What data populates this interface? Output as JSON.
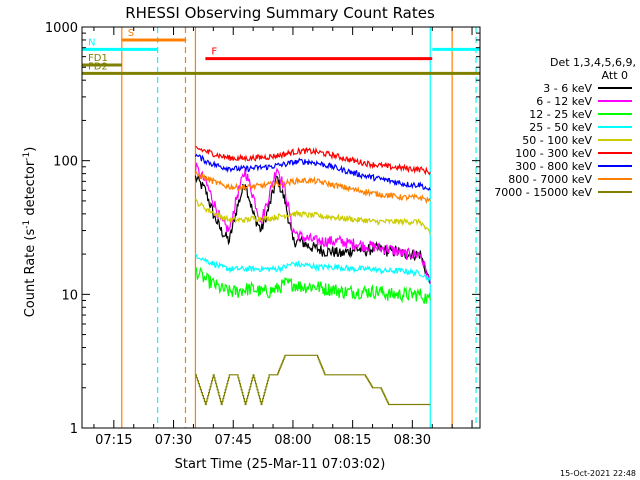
{
  "chart_data": {
    "type": "line",
    "title": "RHESSI Observing Summary Count Rates",
    "xlabel": "Start Time (25-Mar-11 07:03:02)",
    "ylabel_main": "Count Rate (s",
    "ylabel_sup": "-1",
    "ylabel_tail": " detector",
    "ylabel_end": ")",
    "yscale": "log",
    "ylim": [
      1,
      1000
    ],
    "xlim_minutes": [
      7.0,
      107.0
    ],
    "x_tick_labels": [
      {
        "label": "07:15",
        "t": 15
      },
      {
        "label": "07:30",
        "t": 30
      },
      {
        "label": "07:45",
        "t": 45
      },
      {
        "label": "08:00",
        "t": 60
      },
      {
        "label": "08:15",
        "t": 75
      },
      {
        "label": "08:30",
        "t": 90
      }
    ],
    "y_tick_labels": [
      {
        "label": "1",
        "v": 1
      },
      {
        "label": "10",
        "v": 10
      },
      {
        "label": "100",
        "v": 100
      },
      {
        "label": "1000",
        "v": 1000
      }
    ],
    "legend_title_1": "Det 1,3,4,5,6,9,",
    "legend_title_2": "Att 0",
    "legend": [
      {
        "label": "3 - 6 keV",
        "color": "#000000"
      },
      {
        "label": "6 - 12 keV",
        "color": "#ff00ff"
      },
      {
        "label": "12 - 25 keV",
        "color": "#00ff00"
      },
      {
        "label": "25 - 50 keV",
        "color": "#00ffff"
      },
      {
        "label": "50 - 100 keV",
        "color": "#cccc00"
      },
      {
        "label": "100 - 300 keV",
        "color": "#ff0000"
      },
      {
        "label": "300 - 800 keV",
        "color": "#0000ff"
      },
      {
        "label": "800 - 7000 keV",
        "color": "#ff8000"
      },
      {
        "label": "7000 - 15000 keV",
        "color": "#808000"
      }
    ],
    "flag_bars": [
      {
        "label": "S",
        "color": "#ff8000",
        "t_start": 17,
        "t_end": 33,
        "level": 800
      },
      {
        "label": "N",
        "color": "#00ffff",
        "t_start": 7,
        "t_end": 26,
        "level": 680,
        "t_start2": 95,
        "t_end2": 107
      },
      {
        "label": "FD1",
        "color": "#808000",
        "t_start": 7,
        "t_end": 17,
        "level": 520
      },
      {
        "label": "F",
        "color": "#ff0000",
        "t_start": 38,
        "t_end": 95,
        "level": 580
      },
      {
        "label": "FD2",
        "color": "#808000",
        "t_start": 7,
        "t_end": 107,
        "level": 450
      }
    ],
    "vertical_markers": [
      {
        "t": 17.0,
        "color": "#ff8000",
        "style": "solid"
      },
      {
        "t": 26.0,
        "color": "#00ffff",
        "style": "dashed"
      },
      {
        "t": 33.0,
        "color": "#ff8000",
        "style": "dashed"
      },
      {
        "t": 35.5,
        "color": "#ff8000",
        "style": "solid"
      },
      {
        "t": 94.5,
        "color": "#00ffff",
        "style": "solid"
      },
      {
        "t": 100.0,
        "color": "#ff8000",
        "style": "solid"
      },
      {
        "t": 106.0,
        "color": "#00ffff",
        "style": "dashed"
      }
    ],
    "x": [
      35.5,
      38,
      40,
      42,
      44,
      46,
      48,
      50,
      52,
      54,
      56,
      58,
      60,
      62,
      64,
      66,
      68,
      70,
      72,
      74,
      76,
      78,
      80,
      82,
      84,
      86,
      88,
      90,
      92,
      94.5
    ],
    "series": [
      {
        "name": "3 - 6 keV",
        "color": "#000000",
        "values": [
          75,
          60,
          40,
          30,
          25,
          45,
          70,
          40,
          30,
          45,
          75,
          50,
          25,
          25,
          23,
          22,
          21,
          21,
          20,
          21,
          22,
          21,
          22,
          22,
          21,
          21,
          20,
          20,
          20,
          12
        ]
      },
      {
        "name": "6 - 12 keV",
        "color": "#ff00ff",
        "values": [
          90,
          70,
          50,
          35,
          30,
          55,
          85,
          55,
          35,
          55,
          90,
          60,
          30,
          27,
          26,
          25,
          25,
          25,
          25,
          24,
          24,
          23,
          23,
          22,
          22,
          21,
          20,
          20,
          20,
          12
        ]
      },
      {
        "name": "12 - 25 keV",
        "color": "#00ff00",
        "values": [
          15,
          13,
          12,
          11,
          10.5,
          10.5,
          11,
          11,
          10.5,
          10.5,
          11,
          12,
          12,
          11.5,
          11.5,
          11.5,
          11,
          11,
          10.5,
          10.5,
          10.5,
          10.5,
          10.5,
          10.5,
          10,
          10,
          10,
          10,
          10,
          9
        ]
      },
      {
        "name": "25 - 50 keV",
        "color": "#00ffff",
        "values": [
          20,
          18,
          17,
          16,
          15.5,
          15.5,
          15.5,
          15.5,
          15.5,
          15.5,
          15.5,
          16,
          17,
          16.5,
          16.5,
          16,
          16,
          16,
          16,
          15.5,
          15.5,
          15.5,
          15.5,
          15,
          15,
          15,
          15,
          14.5,
          14.5,
          13
        ]
      },
      {
        "name": "50 - 100 keV",
        "color": "#cccc00",
        "values": [
          50,
          44,
          41,
          38,
          36,
          36,
          36,
          37,
          37,
          37,
          38,
          39,
          40,
          40,
          39,
          39,
          38,
          38,
          37,
          37,
          36,
          36,
          35,
          35,
          35,
          35,
          35,
          35,
          35,
          28
        ]
      },
      {
        "name": "100 - 300 keV",
        "color": "#ff0000",
        "values": [
          125,
          118,
          113,
          108,
          105,
          104,
          104,
          105,
          106,
          107,
          109,
          112,
          116,
          118,
          118,
          116,
          113,
          110,
          106,
          102,
          99,
          96,
          94,
          92,
          90,
          89,
          88,
          87,
          86,
          82
        ]
      },
      {
        "name": "300 - 800 keV",
        "color": "#0000ff",
        "values": [
          110,
          100,
          94,
          90,
          88,
          87,
          87,
          88,
          89,
          90,
          92,
          94,
          97,
          99,
          98,
          96,
          93,
          90,
          86,
          83,
          80,
          77,
          75,
          73,
          71,
          69,
          67,
          66,
          66,
          60
        ]
      },
      {
        "name": "800 - 7000 keV",
        "color": "#ff8000",
        "values": [
          80,
          74,
          70,
          66,
          64,
          63,
          63,
          64,
          65,
          66,
          67,
          68,
          70,
          71,
          71,
          70,
          68,
          66,
          64,
          62,
          60,
          59,
          57,
          56,
          55,
          54,
          53,
          53,
          53,
          50
        ]
      },
      {
        "name": "7000 - 15000 keV",
        "color": "#808000",
        "values": [
          2.5,
          1.5,
          2.5,
          1.5,
          2.5,
          2.5,
          1.5,
          2.5,
          1.5,
          2.5,
          2.5,
          3.5,
          3.5,
          3.5,
          3.5,
          3.5,
          2.5,
          2.5,
          2.5,
          2.5,
          2.5,
          2.5,
          2.0,
          2.0,
          1.5,
          1.5,
          1.5,
          1.5,
          1.5,
          1.5
        ]
      }
    ],
    "footer_timestamp": "15-Oct-2021 22:48"
  }
}
